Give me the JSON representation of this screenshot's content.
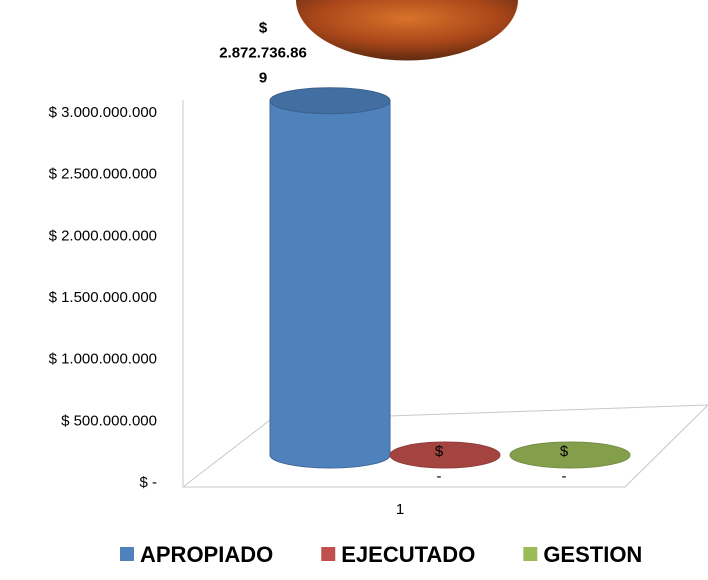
{
  "chart_data": {
    "type": "bar3d",
    "categories": [
      "1"
    ],
    "series": [
      {
        "name": "APROPIADO",
        "color": "#4f81bd",
        "values": [
          2872736869
        ],
        "value_labels": [
          "$ 2.872.736.869"
        ]
      },
      {
        "name": "EJECUTADO",
        "color": "#c0504d",
        "values": [
          0
        ],
        "value_labels": [
          "$ -"
        ]
      },
      {
        "name": "GESTION",
        "color": "#9bbb59",
        "values": [
          0
        ],
        "value_labels": [
          "$ -"
        ]
      }
    ],
    "ylim": [
      0,
      3000000000
    ],
    "yticks": [
      {
        "value": 0,
        "label": "$ -"
      },
      {
        "value": 500000000,
        "label": "$ 500.000.000"
      },
      {
        "value": 1000000000,
        "label": "$ 1.000.000.000"
      },
      {
        "value": 1500000000,
        "label": "$ 1.500.000.000"
      },
      {
        "value": 2000000000,
        "label": "$ 2.000.000.000"
      },
      {
        "value": 2500000000,
        "label": "$ 2.500.000.000"
      },
      {
        "value": 3000000000,
        "label": "$ 3.000.000.000"
      }
    ]
  }
}
